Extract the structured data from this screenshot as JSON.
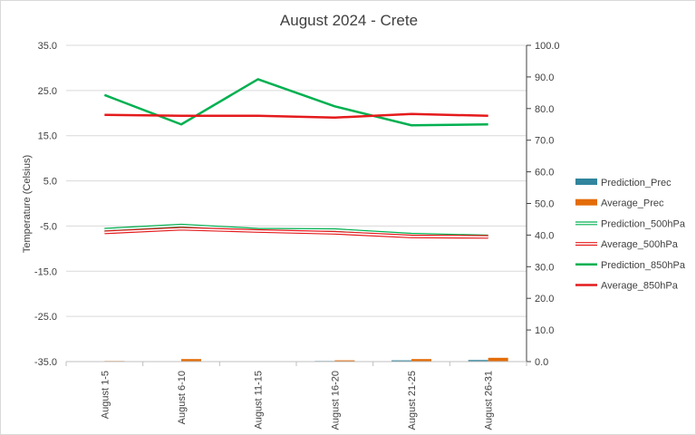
{
  "chart_data": {
    "type": "line",
    "title": "August 2024 - Crete",
    "ylabel": "Temperature (Celsius)",
    "y_ticks_left": [
      "35.0",
      "25.0",
      "15.0",
      "5.0",
      "-5.0",
      "-15.0",
      "-25.0",
      "-35.0"
    ],
    "y_ticks_right": [
      "100.0",
      "90.0",
      "80.0",
      "70.0",
      "60.0",
      "50.0",
      "40.0",
      "30.0",
      "20.0",
      "10.0",
      "0.0"
    ],
    "ylim_left": [
      -35,
      35
    ],
    "ylim_right": [
      0,
      100
    ],
    "categories": [
      "August 1-5",
      "August 6-10",
      "August 11-15",
      "August 16-20",
      "August 21-25",
      "August 26-31"
    ],
    "grid": true,
    "legend_position": "right",
    "series": [
      {
        "name": "Prediction_Prec",
        "kind": "bar",
        "axis": "right",
        "color": "#31859c",
        "values": [
          0.1,
          0.1,
          0.1,
          0.2,
          0.4,
          0.5
        ]
      },
      {
        "name": "Average_Prec",
        "kind": "bar",
        "axis": "right",
        "color": "#e36c09",
        "values": [
          0.2,
          0.8,
          0.1,
          0.4,
          0.8,
          1.2
        ]
      },
      {
        "name": "Prediction_500hPa",
        "kind": "line",
        "style": "double",
        "axis": "left",
        "color": "#00b050",
        "values": [
          -5.8,
          -4.9,
          -5.8,
          -5.9,
          -6.9,
          -7.3
        ]
      },
      {
        "name": "Average_500hPa",
        "kind": "line",
        "style": "double",
        "axis": "left",
        "color": "#e41a1c",
        "values": [
          -6.4,
          -5.6,
          -6.1,
          -6.5,
          -7.3,
          -7.4
        ]
      },
      {
        "name": "Prediction_850hPa",
        "kind": "line",
        "style": "solid",
        "axis": "left",
        "color": "#00b050",
        "values": [
          24.0,
          17.5,
          27.5,
          21.5,
          17.3,
          17.5
        ]
      },
      {
        "name": "Average_850hPa",
        "kind": "line",
        "style": "solid",
        "axis": "left",
        "color": "#e41a1c",
        "values": [
          19.6,
          19.4,
          19.4,
          19.0,
          19.8,
          19.4
        ]
      }
    ]
  }
}
